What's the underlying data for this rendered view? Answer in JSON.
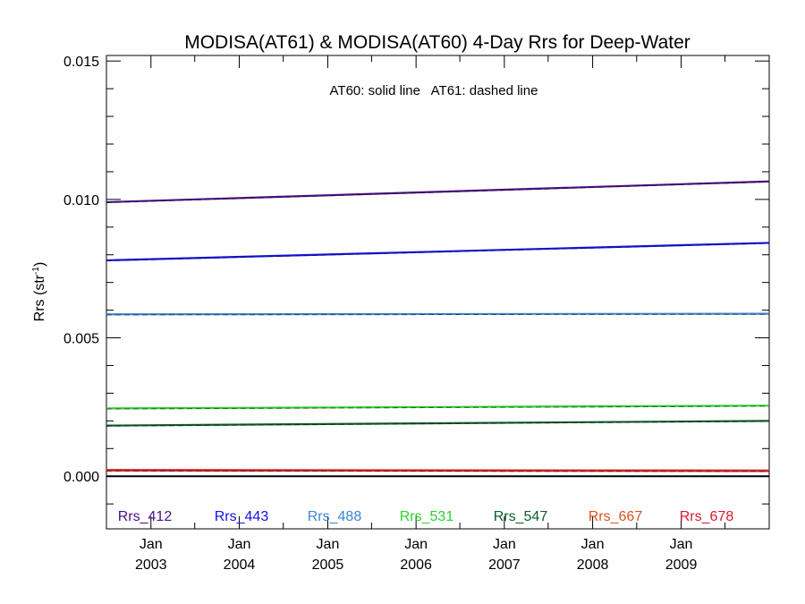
{
  "chart_data": {
    "type": "line",
    "title": "MODISA(AT61) & MODISA(AT60) 4-Day Rrs for Deep-Water",
    "annotation": "AT60: solid line   AT61: dashed line",
    "ylabel": "Rrs (str",
    "ylabel_sup": "-1",
    "ylabel_close": ")",
    "ylim": [
      -0.0019,
      0.0152
    ],
    "xlim": [
      "2002-07-01",
      "2009-12-31"
    ],
    "yticks": [
      0.0,
      0.005,
      0.01,
      0.015
    ],
    "ytick_labels": [
      "0.000",
      "0.005",
      "0.010",
      "0.015"
    ],
    "xticks": [
      {
        "date": "2003-01-01",
        "month": "Jan",
        "year": "2003"
      },
      {
        "date": "2004-01-01",
        "month": "Jan",
        "year": "2004"
      },
      {
        "date": "2005-01-01",
        "month": "Jan",
        "year": "2005"
      },
      {
        "date": "2006-01-01",
        "month": "Jan",
        "year": "2006"
      },
      {
        "date": "2007-01-01",
        "month": "Jan",
        "year": "2007"
      },
      {
        "date": "2008-01-01",
        "month": "Jan",
        "year": "2008"
      },
      {
        "date": "2009-01-01",
        "month": "Jan",
        "year": "2009"
      }
    ],
    "zero_line": 0.0,
    "series": [
      {
        "name": "Rrs_412",
        "color": "#4b0f87",
        "start": 0.0099,
        "end": 0.01065
      },
      {
        "name": "Rrs_443",
        "color": "#1212e6",
        "start": 0.0078,
        "end": 0.00843
      },
      {
        "name": "Rrs_488",
        "color": "#3b86d4",
        "start": 0.00585,
        "end": 0.00587
      },
      {
        "name": "Rrs_531",
        "color": "#2ed12e",
        "start": 0.00245,
        "end": 0.00255
      },
      {
        "name": "Rrs_547",
        "color": "#0c5c2c",
        "start": 0.00183,
        "end": 0.002
      },
      {
        "name": "Rrs_667",
        "color": "#e0521b",
        "start": 0.00023,
        "end": 0.00021
      },
      {
        "name": "Rrs_678",
        "color": "#d41a2e",
        "start": 0.00021,
        "end": 0.00019
      }
    ],
    "legend_position": "bottom inside plot",
    "grid": false
  }
}
